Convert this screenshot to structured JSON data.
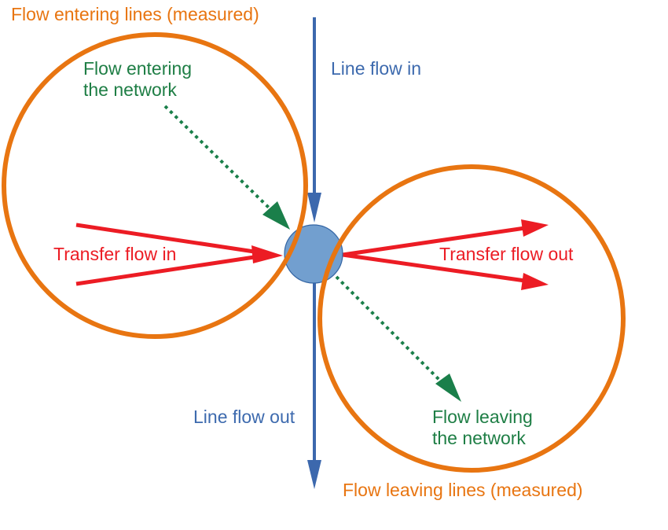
{
  "colors": {
    "measured_circle": "#E87511",
    "line_flow": "#3C68AD",
    "network_flow": "#1A7F4A",
    "transfer_flow": "#EC1C24",
    "node_fill": "#729FCF",
    "node_stroke": "#3465A4"
  },
  "labels": {
    "flow_entering_lines": "Flow entering lines (measured)",
    "flow_leaving_lines": "Flow leaving lines (measured)",
    "line_flow_in": "Line flow in",
    "line_flow_out": "Line flow out",
    "flow_entering_network": [
      "Flow entering",
      "the network"
    ],
    "flow_leaving_network": [
      "Flow leaving",
      "the network"
    ],
    "transfer_flow_in": "Transfer flow in",
    "transfer_flow_out": "Transfer flow out"
  }
}
